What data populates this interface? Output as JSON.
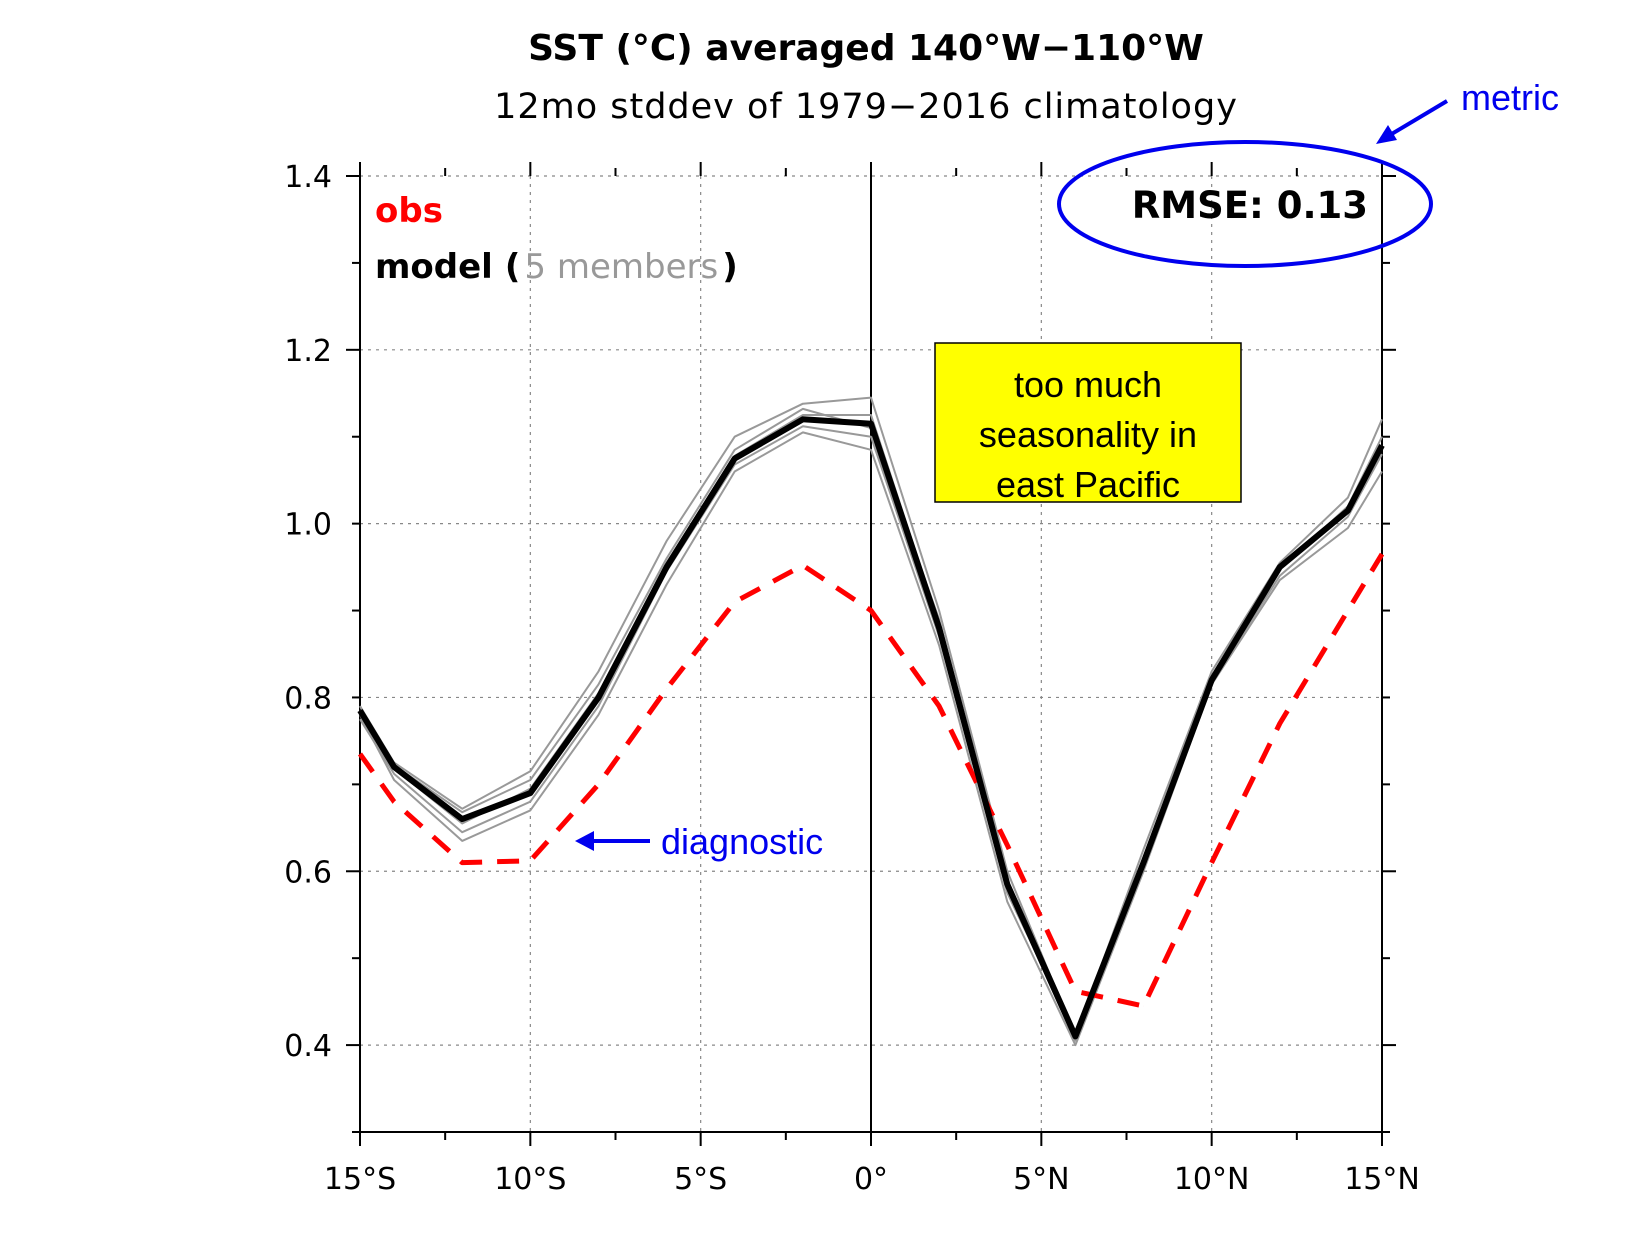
{
  "chart_data": {
    "type": "line",
    "title": "SST (°C) averaged 140°W−110°W",
    "subtitle": "12mo stddev of 1979−2016 climatology",
    "xlim": [
      -15,
      15
    ],
    "ylim": [
      0.3,
      1.4
    ],
    "x_ticks": [
      {
        "value": -15,
        "label": "15°S"
      },
      {
        "value": -10,
        "label": "10°S"
      },
      {
        "value": -5,
        "label": "5°S"
      },
      {
        "value": 0,
        "label": "0°"
      },
      {
        "value": 5,
        "label": "5°N"
      },
      {
        "value": 10,
        "label": "10°N"
      },
      {
        "value": 15,
        "label": "15°N"
      }
    ],
    "y_ticks": [
      {
        "value": 0.4,
        "label": "0.4"
      },
      {
        "value": 0.6,
        "label": "0.6"
      },
      {
        "value": 0.8,
        "label": "0.8"
      },
      {
        "value": 1.0,
        "label": "1.0"
      },
      {
        "value": 1.2,
        "label": "1.2"
      },
      {
        "value": 1.4,
        "label": "1.4"
      }
    ],
    "grid": true,
    "x": [
      -15,
      -14,
      -12,
      -10,
      -8,
      -6,
      -4,
      -2,
      0,
      2,
      4,
      6,
      8,
      10,
      12,
      14,
      15
    ],
    "series": [
      {
        "name": "obs",
        "color": "#ff0000",
        "style": "dashed",
        "values": [
          0.735,
          0.68,
          0.61,
          0.612,
          0.7,
          0.81,
          0.91,
          0.952,
          0.9,
          0.79,
          0.63,
          0.462,
          0.445,
          0.61,
          0.77,
          0.9,
          0.965
        ]
      },
      {
        "name": "model",
        "color": "#000000",
        "style": "solid-thick",
        "values": [
          0.785,
          0.72,
          0.66,
          0.69,
          0.8,
          0.95,
          1.075,
          1.12,
          1.115,
          0.88,
          0.585,
          0.41,
          0.61,
          0.82,
          0.95,
          1.015,
          1.09
        ]
      },
      {
        "member": 1,
        "color": "#999999",
        "style": "solid-thin",
        "values": [
          0.79,
          0.725,
          0.672,
          0.715,
          0.83,
          0.98,
          1.1,
          1.138,
          1.145,
          0.9,
          0.6,
          0.41,
          0.625,
          0.83,
          0.955,
          1.03,
          1.12
        ]
      },
      {
        "member": 2,
        "color": "#999999",
        "style": "solid-thin",
        "values": [
          0.78,
          0.705,
          0.635,
          0.67,
          0.78,
          0.93,
          1.06,
          1.105,
          1.085,
          0.86,
          0.565,
          0.4,
          0.6,
          0.815,
          0.935,
          0.995,
          1.06
        ]
      },
      {
        "member": 3,
        "color": "#999999",
        "style": "solid-thin",
        "values": [
          0.79,
          0.722,
          0.668,
          0.705,
          0.815,
          0.96,
          1.085,
          1.132,
          1.11,
          0.89,
          0.59,
          0.405,
          0.615,
          0.825,
          0.948,
          1.02,
          1.1
        ]
      },
      {
        "member": 4,
        "color": "#999999",
        "style": "solid-thin",
        "values": [
          0.775,
          0.712,
          0.645,
          0.68,
          0.79,
          0.945,
          1.068,
          1.112,
          1.1,
          0.87,
          0.575,
          0.412,
          0.605,
          0.818,
          0.94,
          1.008,
          1.08
        ]
      },
      {
        "member": 5,
        "color": "#999999",
        "style": "solid-thin",
        "values": [
          0.785,
          0.718,
          0.655,
          0.695,
          0.805,
          0.955,
          1.078,
          1.125,
          1.125,
          0.885,
          0.582,
          0.408,
          0.612,
          0.822,
          0.952,
          1.018,
          1.09
        ]
      }
    ]
  },
  "legend": {
    "obs_label": "obs",
    "model_label": "model",
    "paren_open": "(",
    "members_label": "5 members",
    "paren_close": ")"
  },
  "rmse": {
    "text": "RMSE: 0.13"
  },
  "annotations": {
    "seasonality_lines": [
      "too much",
      "seasonality in",
      "east Pacific"
    ],
    "diagnostic_label": "diagnostic",
    "metric_label": "metric"
  },
  "colors": {
    "obs": "#ff0000",
    "model": "#000000",
    "members_text": "#999999",
    "annotation_blue": "#0000ee",
    "note_box_fill": "#ffff00"
  }
}
